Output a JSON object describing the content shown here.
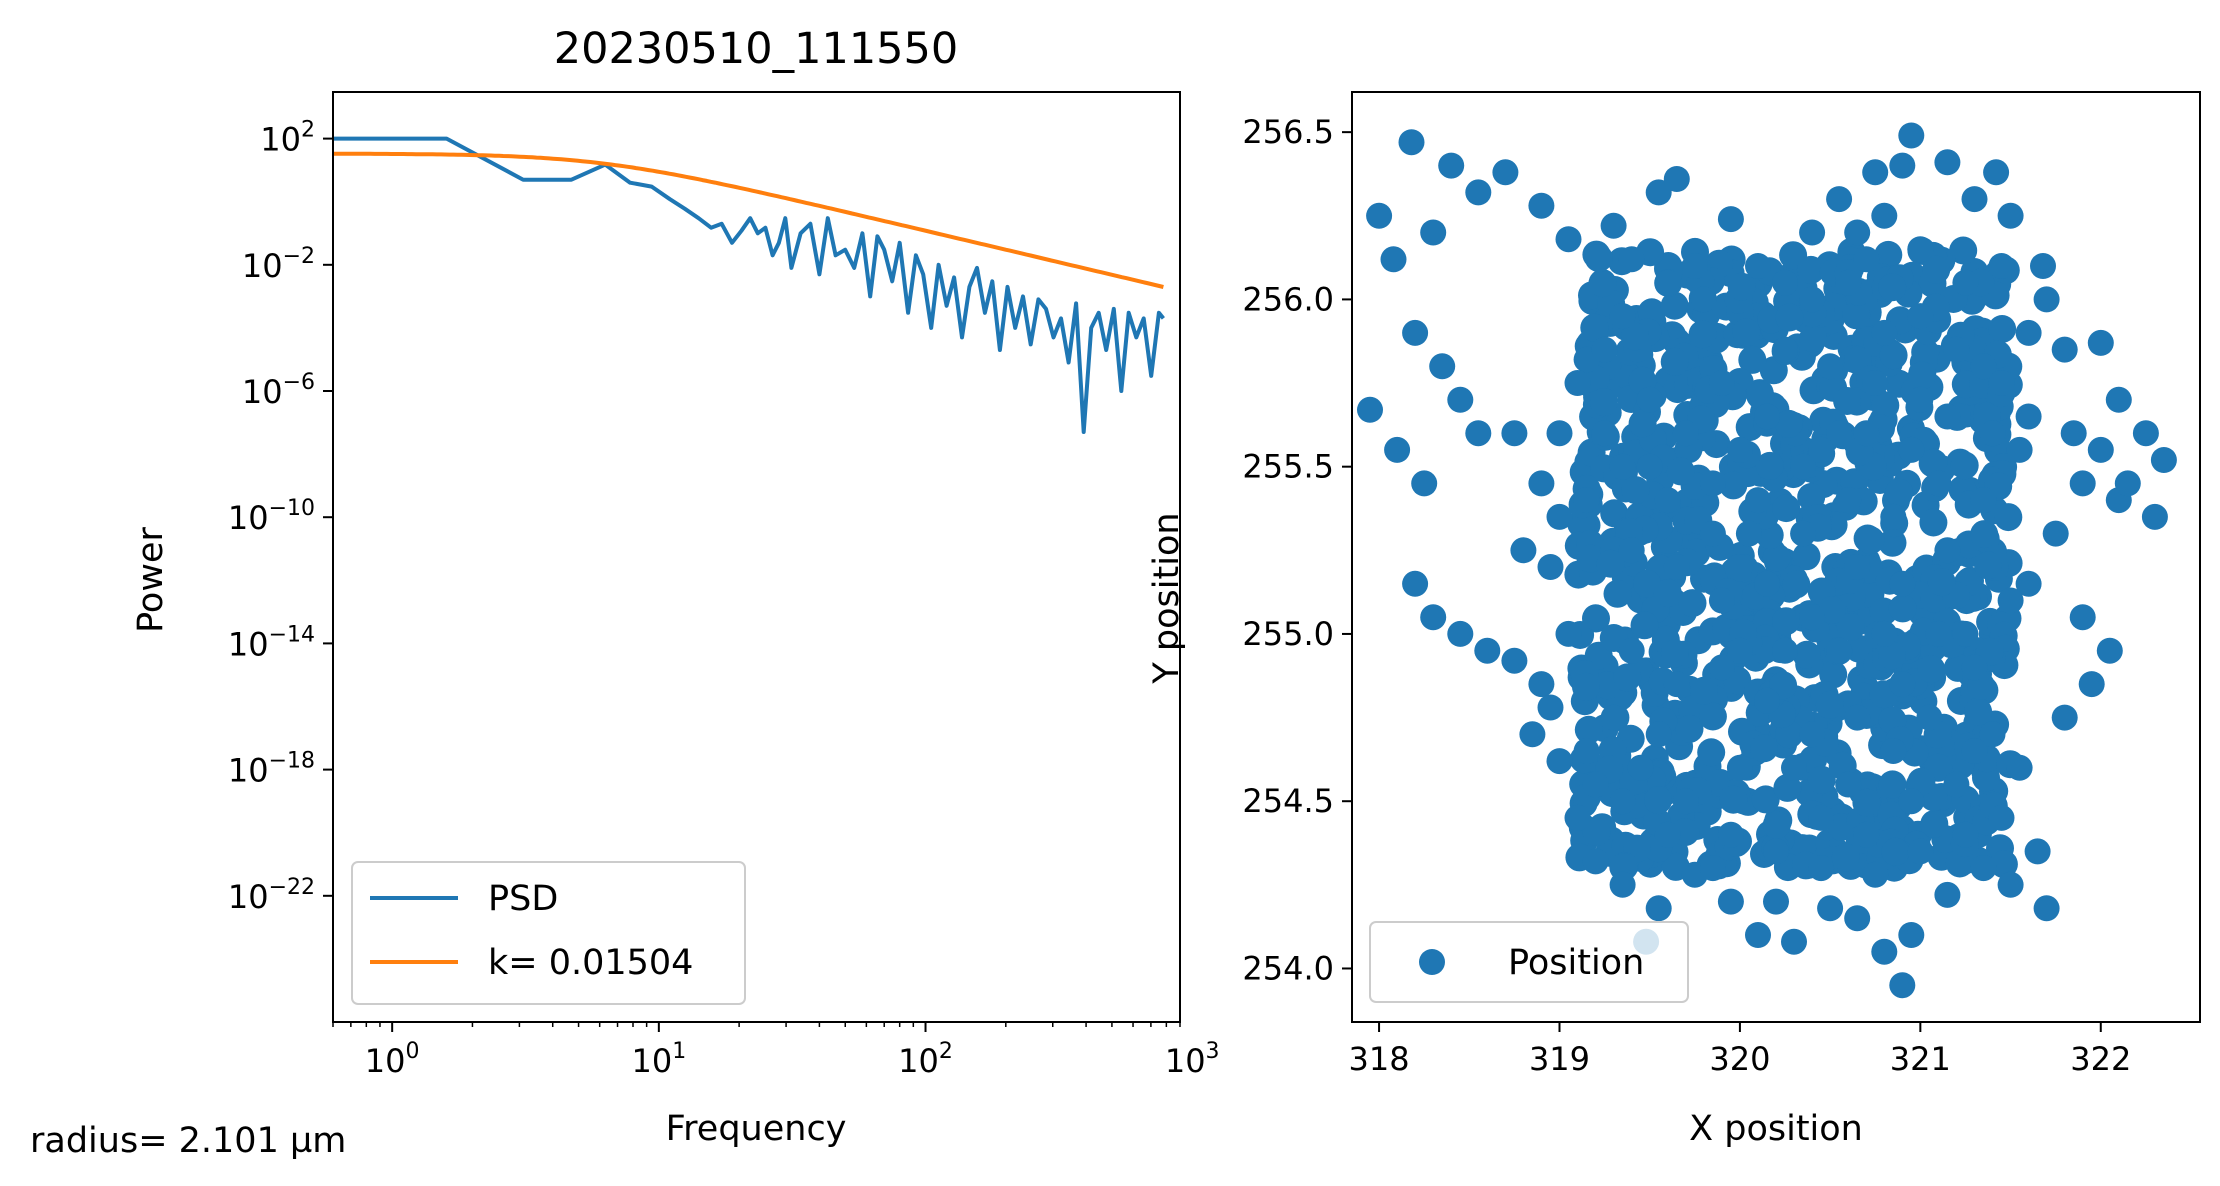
{
  "footnote": "radius= 2.101 µm",
  "chart_data": [
    {
      "type": "line",
      "title": "20230510_111550",
      "xlabel": "Frequency",
      "ylabel": "Power",
      "xscale": "log",
      "yscale": "log",
      "xlim": [
        0.6,
        900
      ],
      "ylim": [
        1e-26,
        3000.0
      ],
      "grid": false,
      "legend_position": "lower-left",
      "x_ticks": [
        {
          "value": 1,
          "base": "10",
          "exp": "0"
        },
        {
          "value": 10,
          "base": "10",
          "exp": "1"
        },
        {
          "value": 100,
          "base": "10",
          "exp": "2"
        },
        {
          "value": 1000,
          "base": "10",
          "exp": "3"
        }
      ],
      "y_ticks": [
        {
          "value": 100,
          "base": "10",
          "exp": "2"
        },
        {
          "value": 0.01,
          "base": "10",
          "exp": "−2"
        },
        {
          "value": 1e-06,
          "base": "10",
          "exp": "−6"
        },
        {
          "value": 1e-10,
          "base": "10",
          "exp": "−10"
        },
        {
          "value": 1e-14,
          "base": "10",
          "exp": "−14"
        },
        {
          "value": 1e-18,
          "base": "10",
          "exp": "−18"
        },
        {
          "value": 1e-22,
          "base": "10",
          "exp": "−22"
        }
      ],
      "series": [
        {
          "name": "PSD",
          "color": "#1f77b4",
          "x": [
            0.6,
            1.0,
            1.6,
            3.1,
            4.7,
            6.3,
            7.8,
            9.4,
            11,
            12.5,
            14.1,
            15.7,
            17.2,
            18.8,
            20.4,
            22,
            23.5,
            25.1,
            26.7,
            28.2,
            29.8,
            31.4,
            34,
            37,
            40,
            43,
            46,
            50,
            54,
            58,
            62,
            66,
            70,
            75,
            80,
            86,
            92,
            98,
            105,
            112,
            120,
            128,
            137,
            146,
            156,
            167,
            178,
            190,
            203,
            217,
            232,
            248,
            265,
            283,
            302,
            322,
            344,
            367,
            392,
            418,
            446,
            476,
            508,
            542,
            578,
            617,
            658,
            702,
            750,
            780
          ],
          "y": [
            100,
            100,
            100,
            5,
            5,
            15,
            4,
            3,
            1.2,
            0.6,
            0.3,
            0.15,
            0.2,
            0.05,
            0.12,
            0.3,
            0.1,
            0.15,
            0.02,
            0.05,
            0.3,
            0.008,
            0.1,
            0.2,
            0.005,
            0.3,
            0.02,
            0.03,
            0.008,
            0.1,
            0.001,
            0.08,
            0.03,
            0.003,
            0.05,
            0.0003,
            0.02,
            0.005,
            0.0001,
            0.01,
            0.0005,
            0.004,
            5e-05,
            0.002,
            0.008,
            0.0003,
            0.003,
            2e-05,
            0.002,
            0.0001,
            0.001,
            3e-05,
            0.0008,
            0.0004,
            5e-05,
            0.0002,
            8e-06,
            0.0006,
            5e-08,
            0.0001,
            0.0003,
            2e-05,
            0.0004,
            1e-06,
            0.0003,
            5e-05,
            0.0002,
            3e-06,
            0.0003,
            0.0002
          ]
        },
        {
          "name": "k= 0.01504",
          "color": "#ff7f0e",
          "model": "lorentzian",
          "plateau": 33.5,
          "corner_frequency": 6
        }
      ]
    },
    {
      "type": "scatter",
      "xlabel": "X position",
      "ylabel": "Y position",
      "xlim": [
        317.85,
        322.55
      ],
      "ylim": [
        253.84,
        256.62
      ],
      "grid": false,
      "legend_position": "lower-left",
      "x_ticks": [
        318,
        319,
        320,
        321,
        322
      ],
      "y_ticks": [
        254.0,
        254.5,
        255.0,
        255.5,
        256.0,
        256.5
      ],
      "y_tick_labels": [
        "254.0",
        "254.5",
        "255.0",
        "255.5",
        "256.0",
        "256.5"
      ],
      "series": [
        {
          "name": "Position",
          "color": "#1f77b4",
          "marker": "circle",
          "points": [
            [
              318.18,
              256.47
            ],
            [
              318.4,
              256.4
            ],
            [
              318.0,
              256.25
            ],
            [
              318.08,
              256.12
            ],
            [
              318.3,
              256.2
            ],
            [
              318.55,
              256.32
            ],
            [
              318.7,
              256.38
            ],
            [
              318.9,
              256.28
            ],
            [
              319.05,
              256.18
            ],
            [
              319.3,
              256.22
            ],
            [
              319.55,
              256.32
            ],
            [
              319.65,
              256.36
            ],
            [
              319.75,
              256.1
            ],
            [
              319.95,
              256.24
            ],
            [
              320.1,
              256.1
            ],
            [
              320.25,
              256.05
            ],
            [
              320.4,
              256.0
            ],
            [
              320.6,
              256.05
            ],
            [
              320.8,
              256.25
            ],
            [
              320.9,
              256.4
            ],
            [
              320.95,
              256.49
            ],
            [
              320.75,
              256.38
            ],
            [
              320.65,
              256.2
            ],
            [
              321.15,
              256.41
            ],
            [
              321.3,
              256.3
            ],
            [
              321.42,
              256.38
            ],
            [
              321.5,
              256.25
            ],
            [
              321.45,
              256.1
            ],
            [
              321.7,
              256.0
            ],
            [
              321.68,
              256.1
            ],
            [
              318.2,
              255.9
            ],
            [
              318.35,
              255.8
            ],
            [
              318.45,
              255.7
            ],
            [
              317.95,
              255.67
            ],
            [
              318.1,
              255.55
            ],
            [
              318.25,
              255.45
            ],
            [
              318.55,
              255.6
            ],
            [
              318.75,
              255.6
            ],
            [
              318.9,
              255.45
            ],
            [
              319.0,
              255.35
            ],
            [
              318.8,
              255.25
            ],
            [
              318.95,
              255.2
            ],
            [
              318.2,
              255.15
            ],
            [
              318.3,
              255.05
            ],
            [
              318.45,
              255.0
            ],
            [
              318.6,
              254.95
            ],
            [
              318.75,
              254.92
            ],
            [
              318.9,
              254.85
            ],
            [
              319.15,
              255.82
            ],
            [
              319.35,
              255.95
            ],
            [
              319.5,
              255.7
            ],
            [
              319.7,
              255.6
            ],
            [
              319.9,
              255.75
            ],
            [
              320.15,
              255.65
            ],
            [
              320.35,
              255.5
            ],
            [
              320.55,
              255.6
            ],
            [
              320.75,
              255.75
            ],
            [
              320.95,
              255.55
            ],
            [
              321.15,
              255.65
            ],
            [
              321.35,
              255.8
            ],
            [
              321.6,
              255.9
            ],
            [
              321.8,
              255.85
            ],
            [
              322.0,
              255.87
            ],
            [
              322.1,
              255.7
            ],
            [
              322.25,
              255.6
            ],
            [
              322.35,
              255.52
            ],
            [
              322.3,
              255.35
            ],
            [
              322.1,
              255.4
            ],
            [
              321.9,
              255.45
            ],
            [
              321.75,
              255.3
            ],
            [
              321.6,
              255.15
            ],
            [
              321.9,
              255.05
            ],
            [
              322.05,
              254.95
            ],
            [
              321.95,
              254.85
            ],
            [
              321.8,
              254.75
            ],
            [
              321.55,
              254.6
            ],
            [
              321.45,
              254.45
            ],
            [
              321.65,
              254.35
            ],
            [
              321.7,
              254.18
            ],
            [
              321.5,
              254.25
            ],
            [
              321.35,
              254.3
            ],
            [
              321.15,
              254.22
            ],
            [
              320.95,
              254.1
            ],
            [
              320.9,
              253.95
            ],
            [
              320.8,
              254.05
            ],
            [
              320.65,
              254.15
            ],
            [
              320.5,
              254.18
            ],
            [
              320.3,
              254.08
            ],
            [
              320.1,
              254.1
            ],
            [
              319.95,
              254.2
            ],
            [
              319.75,
              254.28
            ],
            [
              319.55,
              254.18
            ],
            [
              319.48,
              254.08
            ],
            [
              319.35,
              254.25
            ],
            [
              319.2,
              254.32
            ],
            [
              319.1,
              254.45
            ],
            [
              319.0,
              254.62
            ],
            [
              318.85,
              254.7
            ],
            [
              318.95,
              254.78
            ],
            [
              319.2,
              254.55
            ],
            [
              319.45,
              254.6
            ],
            [
              319.7,
              254.5
            ],
            [
              319.95,
              254.4
            ],
            [
              320.2,
              254.35
            ],
            [
              320.45,
              254.45
            ],
            [
              320.7,
              254.4
            ],
            [
              320.95,
              254.5
            ],
            [
              321.2,
              254.55
            ],
            [
              321.4,
              254.7
            ],
            [
              321.3,
              254.9
            ],
            [
              321.1,
              255.0
            ],
            [
              320.9,
              254.85
            ],
            [
              320.65,
              254.75
            ],
            [
              320.4,
              254.7
            ],
            [
              320.15,
              254.8
            ],
            [
              319.9,
              254.9
            ],
            [
              319.65,
              254.85
            ],
            [
              319.4,
              254.95
            ],
            [
              319.2,
              255.05
            ],
            [
              319.4,
              255.25
            ],
            [
              319.65,
              255.2
            ],
            [
              319.9,
              255.1
            ],
            [
              320.15,
              255.15
            ],
            [
              320.4,
              255.05
            ],
            [
              320.65,
              255.2
            ],
            [
              320.9,
              255.15
            ],
            [
              321.15,
              255.25
            ],
            [
              321.35,
              255.4
            ],
            [
              321.1,
              255.45
            ],
            [
              320.85,
              255.35
            ],
            [
              320.6,
              255.4
            ],
            [
              320.35,
              255.3
            ],
            [
              320.1,
              255.4
            ],
            [
              319.85,
              255.45
            ],
            [
              319.6,
              255.4
            ],
            [
              319.35,
              255.5
            ],
            [
              319.25,
              255.6
            ],
            [
              319.5,
              255.5
            ],
            [
              320.0,
              255.55
            ],
            [
              320.25,
              255.85
            ],
            [
              320.5,
              255.8
            ],
            [
              320.8,
              255.9
            ],
            [
              321.0,
              255.95
            ],
            [
              321.25,
              256.05
            ],
            [
              321.25,
              255.0
            ],
            [
              321.5,
              255.1
            ],
            [
              321.55,
              255.55
            ],
            [
              321.4,
              255.6
            ],
            [
              319.8,
              256.0
            ],
            [
              319.6,
              256.05
            ],
            [
              320.0,
              254.6
            ],
            [
              320.3,
              254.6
            ],
            [
              320.6,
              254.55
            ],
            [
              320.85,
              254.65
            ],
            [
              319.3,
              254.75
            ],
            [
              319.55,
              254.7
            ],
            [
              320.0,
              254.95
            ],
            [
              320.25,
              254.95
            ],
            [
              320.55,
              254.95
            ],
            [
              320.8,
              255.0
            ],
            [
              321.05,
              254.75
            ],
            [
              321.3,
              254.65
            ],
            [
              319.05,
              255.0
            ],
            [
              319.15,
              255.4
            ],
            [
              319.0,
              255.6
            ],
            [
              319.1,
              255.75
            ],
            [
              319.25,
              255.85
            ],
            [
              319.4,
              256.12
            ],
            [
              320.4,
              256.2
            ],
            [
              320.55,
              256.3
            ],
            [
              320.7,
              256.12
            ],
            [
              321.0,
              256.15
            ],
            [
              319.85,
              255.3
            ],
            [
              320.05,
              255.3
            ],
            [
              320.45,
              255.55
            ],
            [
              320.7,
              255.6
            ],
            [
              321.0,
              255.7
            ],
            [
              321.2,
              255.85
            ],
            [
              321.45,
              255.75
            ],
            [
              321.6,
              255.65
            ],
            [
              320.2,
              254.2
            ],
            [
              320.45,
              254.3
            ],
            [
              320.75,
              254.28
            ],
            [
              321.0,
              254.35
            ],
            [
              321.25,
              254.4
            ],
            [
              319.85,
              254.3
            ],
            [
              319.6,
              254.4
            ],
            [
              319.35,
              254.5
            ],
            [
              319.15,
              254.65
            ],
            [
              321.85,
              255.6
            ],
            [
              322.0,
              255.55
            ],
            [
              322.15,
              255.45
            ]
          ]
        }
      ]
    }
  ]
}
